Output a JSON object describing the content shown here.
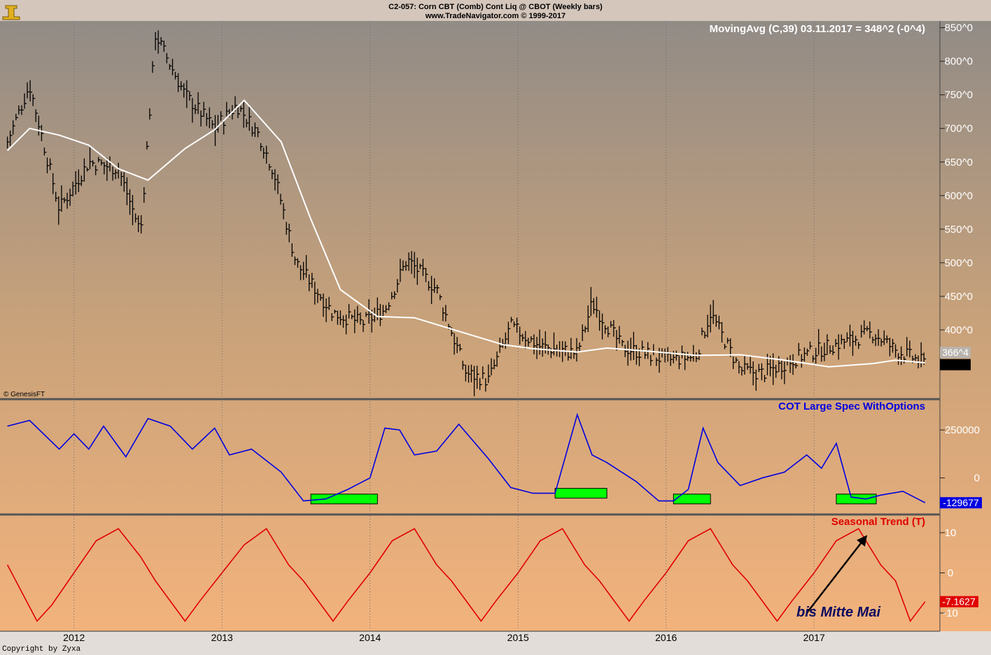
{
  "header": {
    "line1": "C2-057:  Corn CBT (Comb) Cont Liq @ CBOT  (Weekly bars)",
    "line2": "www.TradeNavigator.com © 1999-2017"
  },
  "copyright": "Copyright by Zyxa",
  "genesis_label": "© GenesisFT",
  "chart_data": [
    {
      "type": "line",
      "title": "MovingAvg (C,39)   03.11.2017 = 348^2 (-0^4)",
      "series": [
        {
          "name": "Weekly bars (close)",
          "x": [
            2011.55,
            2011.7,
            2011.9,
            2012.1,
            2012.3,
            2012.45,
            2012.55,
            2012.75,
            2012.95,
            2013.1,
            2013.25,
            2013.35,
            2013.5,
            2013.75,
            2013.95,
            2014.1,
            2014.25,
            2014.45,
            2014.65,
            2014.8,
            2014.95,
            2015.15,
            2015.4,
            2015.5,
            2015.7,
            2016.0,
            2016.2,
            2016.3,
            2016.5,
            2016.65,
            2016.9,
            2017.1,
            2017.4,
            2017.55,
            2017.75
          ],
          "values": [
            680,
            765,
            580,
            650,
            640,
            545,
            840,
            750,
            700,
            735,
            690,
            635,
            500,
            425,
            410,
            430,
            505,
            460,
            335,
            325,
            405,
            375,
            365,
            440,
            375,
            355,
            360,
            425,
            340,
            335,
            360,
            375,
            395,
            370,
            350
          ]
        },
        {
          "name": "MovingAvg (C,39)",
          "x": [
            2011.55,
            2011.7,
            2011.9,
            2012.1,
            2012.3,
            2012.5,
            2012.75,
            2012.95,
            2013.15,
            2013.4,
            2013.6,
            2013.8,
            2014.05,
            2014.3,
            2014.6,
            2014.9,
            2015.1,
            2015.4,
            2015.6,
            2015.9,
            2016.2,
            2016.5,
            2016.8,
            2017.1,
            2017.4,
            2017.55,
            2017.75
          ],
          "values": [
            667,
            700,
            690,
            675,
            640,
            623,
            670,
            698,
            742,
            680,
            565,
            460,
            420,
            418,
            398,
            378,
            372,
            367,
            373,
            368,
            362,
            363,
            355,
            345,
            350,
            355,
            351
          ]
        }
      ],
      "ylim": [
        300,
        860
      ],
      "yticks": [
        {
          "value": 850,
          "label": "850^0"
        },
        {
          "value": 800,
          "label": "800^0"
        },
        {
          "value": 750,
          "label": "750^0"
        },
        {
          "value": 700,
          "label": "700^0"
        },
        {
          "value": 650,
          "label": "650^0"
        },
        {
          "value": 600,
          "label": "600^0"
        },
        {
          "value": 550,
          "label": "550^0"
        },
        {
          "value": 500,
          "label": "500^0"
        },
        {
          "value": 450,
          "label": "450^0"
        },
        {
          "value": 400,
          "label": "400^0"
        }
      ],
      "last_value_labels": [
        {
          "value": 366.5,
          "label": "366^4",
          "color": "#ffffff"
        },
        {
          "value": 348.25,
          "label": "348^2",
          "color": "#000000"
        }
      ]
    },
    {
      "type": "line",
      "title": "COT Large Spec WithOptions",
      "series": [
        {
          "name": "COT Large Spec WithOptions",
          "x": [
            2011.55,
            2011.7,
            2011.9,
            2012.0,
            2012.1,
            2012.2,
            2012.35,
            2012.5,
            2012.65,
            2012.8,
            2012.95,
            2013.05,
            2013.2,
            2013.4,
            2013.55,
            2013.7,
            2013.85,
            2014.0,
            2014.1,
            2014.2,
            2014.3,
            2014.45,
            2014.6,
            2014.8,
            2014.95,
            2015.1,
            2015.25,
            2015.4,
            2015.5,
            2015.6,
            2015.8,
            2015.95,
            2016.05,
            2016.15,
            2016.25,
            2016.35,
            2016.5,
            2016.65,
            2016.8,
            2016.95,
            2017.05,
            2017.15,
            2017.25,
            2017.35,
            2017.45,
            2017.6,
            2017.75
          ],
          "values": [
            270000,
            300000,
            150000,
            230000,
            150000,
            270000,
            110000,
            310000,
            270000,
            150000,
            260000,
            120000,
            150000,
            30000,
            -120000,
            -110000,
            -60000,
            0,
            260000,
            250000,
            120000,
            140000,
            280000,
            100000,
            -50000,
            -80000,
            -80000,
            330000,
            120000,
            80000,
            -20000,
            -120000,
            -120000,
            -60000,
            260000,
            80000,
            -40000,
            0,
            30000,
            120000,
            50000,
            180000,
            -100000,
            -110000,
            -90000,
            -70000,
            -129677
          ]
        }
      ],
      "ylim": [
        -180000,
        400000
      ],
      "yticks": [
        {
          "value": 250000,
          "label": "250000"
        },
        {
          "value": 0,
          "label": "0"
        }
      ],
      "last_value_label": "-129677",
      "highlight_boxes": [
        {
          "from": 2013.6,
          "to": 2014.05,
          "value": -110000
        },
        {
          "from": 2015.25,
          "to": 2015.6,
          "value": -80000
        },
        {
          "from": 2016.05,
          "to": 2016.3,
          "value": -110000
        },
        {
          "from": 2017.15,
          "to": 2017.42,
          "value": -110000
        }
      ]
    },
    {
      "type": "line",
      "title": "Seasonal Trend (T)",
      "series": [
        {
          "name": "Seasonal Trend (T)",
          "x": [
            2011.55,
            2011.75,
            2011.85,
            2012.0,
            2012.15,
            2012.3,
            2012.45,
            2012.55,
            2012.75,
            2012.85,
            2013.0,
            2013.15,
            2013.3,
            2013.45,
            2013.55,
            2013.75,
            2013.85,
            2014.0,
            2014.15,
            2014.3,
            2014.45,
            2014.55,
            2014.75,
            2014.85,
            2015.0,
            2015.15,
            2015.3,
            2015.45,
            2015.55,
            2015.75,
            2015.85,
            2016.0,
            2016.15,
            2016.3,
            2016.45,
            2016.55,
            2016.75,
            2016.85,
            2017.0,
            2017.15,
            2017.3,
            2017.45,
            2017.55,
            2017.65,
            2017.75
          ],
          "values": [
            2,
            -12,
            -8,
            0,
            8,
            11,
            4,
            -2,
            -12,
            -7,
            0,
            7,
            11,
            2,
            -2,
            -12,
            -7,
            0,
            8,
            11,
            2,
            -2,
            -12,
            -7,
            0,
            8,
            11,
            2,
            -2,
            -12,
            -7,
            0,
            8,
            11,
            2,
            -2,
            -12,
            -7,
            0,
            8,
            11,
            2,
            -2,
            -12,
            -7.1627
          ]
        }
      ],
      "ylim": [
        -14,
        14
      ],
      "yticks": [
        {
          "value": 10,
          "label": "10"
        },
        {
          "value": 0,
          "label": "0"
        },
        {
          "value": -10,
          "label": "-10"
        }
      ],
      "last_value_label": "-7.1627",
      "annotation": {
        "text": "bis Mitte Mai",
        "arrow_from": [
          2016.95,
          -10
        ],
        "arrow_to": [
          2017.35,
          9
        ]
      }
    }
  ],
  "x_axis": {
    "range": [
      2011.5,
      2017.85
    ],
    "ticks": [
      {
        "value": 2012,
        "label": "2012"
      },
      {
        "value": 2013,
        "label": "2013"
      },
      {
        "value": 2014,
        "label": "2014"
      },
      {
        "value": 2015,
        "label": "2015"
      },
      {
        "value": 2016,
        "label": "2016"
      },
      {
        "value": 2017,
        "label": "2017"
      }
    ]
  },
  "colors": {
    "price": "#000000",
    "moving_avg": "#ffffff",
    "cot": "#0000e0",
    "seasonal": "#e00000",
    "highlight": "#00ff00",
    "annotation": "#0a0a60"
  }
}
